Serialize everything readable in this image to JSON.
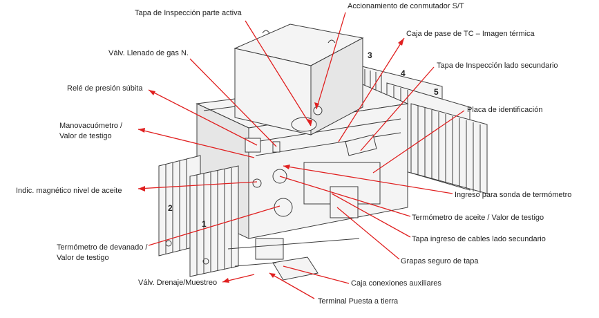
{
  "labels": {
    "tapa_inspeccion_activa": "Tapa de Inspección parte activa",
    "accionamiento_conmutador": "Accionamiento de conmutador S/T",
    "valv_llenado": "Válv. Llenado de gas N.",
    "caja_pase_tc": "Caja de pase de TC – Imagen térmica",
    "tapa_inspeccion_secundario": "Tapa de Inspección lado secundario",
    "rele_presion": "Relé de presión súbita",
    "placa_identificacion": "Placa de identificación",
    "manovacuometro_1": "Manovacuómetro /",
    "manovacuometro_2": "Valor de testigo",
    "indic_magnetico": "Indic. magnético nivel de aceite",
    "ingreso_sonda": "Ingreso para sonda de termómetro",
    "termometro_aceite": "Termómetro de aceite / Valor de testigo",
    "termometro_devanado_1": "Termómetro de devanado /",
    "termometro_devanado_2": "Valor de testigo",
    "tapa_ingreso_cables": "Tapa ingreso de cables lado secundario",
    "grapas_seguro": "Grapas seguro de tapa",
    "valv_drenaje": "Válv. Drenaje/Muestreo",
    "caja_conexiones": "Caja conexiones auxiliares",
    "terminal_tierra": "Terminal Puesta a tierra"
  },
  "radiator_numbers": {
    "r1": "1",
    "r2": "2",
    "r3": "3",
    "r4": "4",
    "r5": "5"
  },
  "colors": {
    "leader": "#e02020",
    "drawing": "#3b3b3b",
    "text": "#222222"
  }
}
